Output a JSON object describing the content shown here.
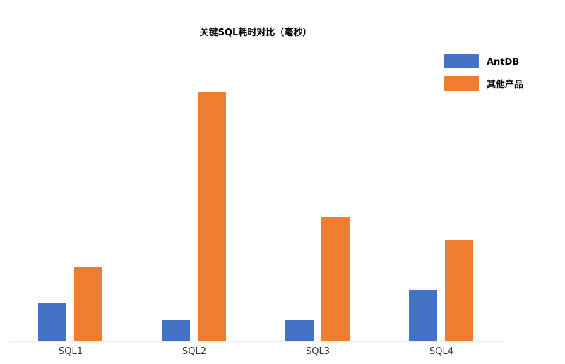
{
  "chart_data": {
    "type": "bar",
    "title": "关键SQL耗时对比（毫秒）",
    "categories": [
      "SQL1",
      "SQL2",
      "SQL3",
      "SQL4"
    ],
    "series": [
      {
        "name": "AntDB",
        "color": "#4472C4",
        "values": [
          54,
          31,
          30,
          73
        ]
      },
      {
        "name": "其他产品",
        "color": "#ED7D31",
        "values": [
          106,
          354,
          177,
          144
        ]
      }
    ],
    "ylim": [
      0,
      380
    ],
    "grid": false,
    "legend_position": "top-right"
  }
}
